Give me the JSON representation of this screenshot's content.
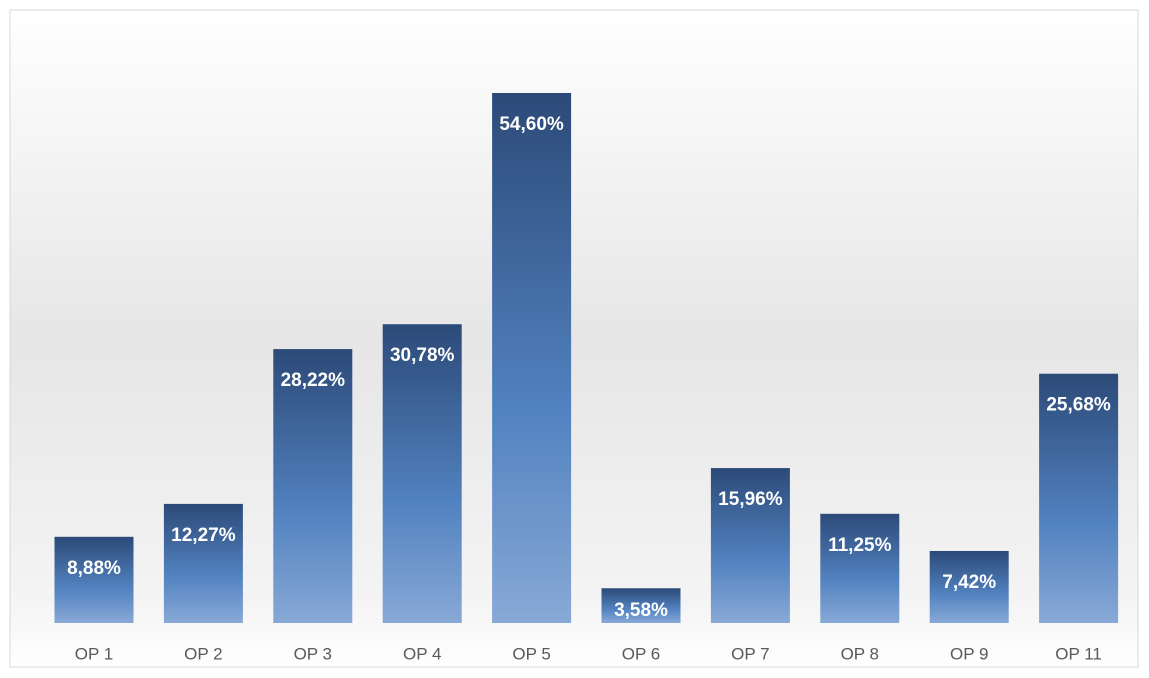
{
  "chart_data": {
    "type": "bar",
    "categories": [
      "OP 1",
      "OP 2",
      "OP 3",
      "OP 4",
      "OP 5",
      "OP 6",
      "OP 7",
      "OP 8",
      "OP 9",
      "OP 11"
    ],
    "values": [
      8.88,
      12.27,
      28.22,
      30.78,
      54.6,
      3.58,
      15.96,
      11.25,
      7.42,
      25.68
    ],
    "value_labels": [
      "8,88%",
      "12,27%",
      "28,22%",
      "30,78%",
      "54,60%",
      "3,58%",
      "15,96%",
      "11,25%",
      "7,42%",
      "25,68%"
    ],
    "color": "#4a75b0"
  }
}
